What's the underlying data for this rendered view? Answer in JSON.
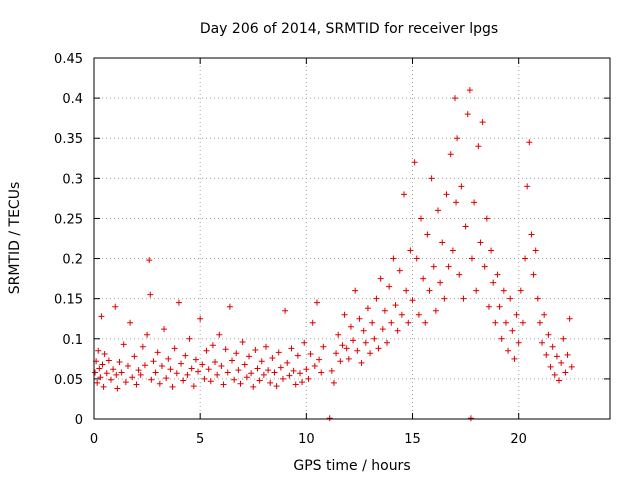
{
  "chart_data": {
    "type": "scatter",
    "title": "Day 206 of 2014, SRMTID for receiver lpgs",
    "xlabel": "GPS time / hours",
    "ylabel": "SRMTID / TECUs",
    "xlim": [
      0,
      24.3
    ],
    "ylim": [
      0,
      0.45
    ],
    "xticks": [
      0,
      5,
      10,
      15,
      20
    ],
    "xtick_labels": [
      "0",
      "5",
      "10",
      "15",
      "20"
    ],
    "yticks": [
      0,
      0.05,
      0.1,
      0.15,
      0.2,
      0.25,
      0.3,
      0.35,
      0.4,
      0.45
    ],
    "ytick_labels": [
      "0",
      "0.05",
      "0.1",
      "0.15",
      "0.2",
      "0.25",
      "0.3",
      "0.35",
      "0.4",
      "0.45"
    ],
    "grid": true,
    "marker": "+",
    "color": "#e00000",
    "series": [
      {
        "name": "SRMTID",
        "points": [
          [
            0.05,
            0.058
          ],
          [
            0.1,
            0.072
          ],
          [
            0.15,
            0.045
          ],
          [
            0.2,
            0.085
          ],
          [
            0.25,
            0.063
          ],
          [
            0.3,
            0.052
          ],
          [
            0.35,
            0.128
          ],
          [
            0.4,
            0.068
          ],
          [
            0.45,
            0.04
          ],
          [
            0.5,
            0.081
          ],
          [
            0.6,
            0.057
          ],
          [
            0.7,
            0.073
          ],
          [
            0.8,
            0.049
          ],
          [
            0.9,
            0.062
          ],
          [
            1.0,
            0.14
          ],
          [
            1.05,
            0.055
          ],
          [
            1.1,
            0.038
          ],
          [
            1.2,
            0.071
          ],
          [
            1.3,
            0.058
          ],
          [
            1.4,
            0.093
          ],
          [
            1.5,
            0.046
          ],
          [
            1.6,
            0.066
          ],
          [
            1.7,
            0.12
          ],
          [
            1.8,
            0.052
          ],
          [
            1.9,
            0.078
          ],
          [
            2.0,
            0.043
          ],
          [
            2.1,
            0.061
          ],
          [
            2.2,
            0.055
          ],
          [
            2.3,
            0.09
          ],
          [
            2.4,
            0.067
          ],
          [
            2.5,
            0.105
          ],
          [
            2.6,
            0.198
          ],
          [
            2.65,
            0.155
          ],
          [
            2.7,
            0.049
          ],
          [
            2.8,
            0.072
          ],
          [
            2.9,
            0.058
          ],
          [
            3.0,
            0.083
          ],
          [
            3.1,
            0.044
          ],
          [
            3.2,
            0.066
          ],
          [
            3.3,
            0.112
          ],
          [
            3.4,
            0.051
          ],
          [
            3.5,
            0.075
          ],
          [
            3.6,
            0.062
          ],
          [
            3.7,
            0.04
          ],
          [
            3.8,
            0.088
          ],
          [
            3.9,
            0.057
          ],
          [
            4.0,
            0.145
          ],
          [
            4.1,
            0.069
          ],
          [
            4.2,
            0.048
          ],
          [
            4.3,
            0.079
          ],
          [
            4.4,
            0.055
          ],
          [
            4.5,
            0.1
          ],
          [
            4.6,
            0.063
          ],
          [
            4.7,
            0.041
          ],
          [
            4.8,
            0.074
          ],
          [
            4.9,
            0.059
          ],
          [
            5.0,
            0.125
          ],
          [
            5.1,
            0.068
          ],
          [
            5.2,
            0.05
          ],
          [
            5.3,
            0.085
          ],
          [
            5.4,
            0.062
          ],
          [
            5.5,
            0.047
          ],
          [
            5.6,
            0.092
          ],
          [
            5.7,
            0.071
          ],
          [
            5.8,
            0.055
          ],
          [
            5.9,
            0.105
          ],
          [
            6.0,
            0.066
          ],
          [
            6.1,
            0.043
          ],
          [
            6.2,
            0.087
          ],
          [
            6.3,
            0.058
          ],
          [
            6.4,
            0.14
          ],
          [
            6.5,
            0.073
          ],
          [
            6.6,
            0.049
          ],
          [
            6.7,
            0.082
          ],
          [
            6.8,
            0.061
          ],
          [
            6.9,
            0.044
          ],
          [
            7.0,
            0.096
          ],
          [
            7.1,
            0.068
          ],
          [
            7.2,
            0.052
          ],
          [
            7.3,
            0.078
          ],
          [
            7.4,
            0.057
          ],
          [
            7.5,
            0.04
          ],
          [
            7.6,
            0.086
          ],
          [
            7.7,
            0.063
          ],
          [
            7.8,
            0.048
          ],
          [
            7.9,
            0.072
          ],
          [
            8.0,
            0.055
          ],
          [
            8.1,
            0.09
          ],
          [
            8.2,
            0.061
          ],
          [
            8.3,
            0.045
          ],
          [
            8.4,
            0.076
          ],
          [
            8.5,
            0.058
          ],
          [
            8.6,
            0.041
          ],
          [
            8.7,
            0.083
          ],
          [
            8.8,
            0.064
          ],
          [
            8.9,
            0.05
          ],
          [
            9.0,
            0.135
          ],
          [
            9.1,
            0.07
          ],
          [
            9.2,
            0.054
          ],
          [
            9.3,
            0.088
          ],
          [
            9.4,
            0.06
          ],
          [
            9.5,
            0.043
          ],
          [
            9.6,
            0.079
          ],
          [
            9.7,
            0.057
          ],
          [
            9.8,
            0.046
          ],
          [
            9.9,
            0.095
          ],
          [
            10.0,
            0.062
          ],
          [
            10.1,
            0.05
          ],
          [
            10.2,
            0.081
          ],
          [
            10.3,
            0.12
          ],
          [
            10.4,
            0.066
          ],
          [
            10.5,
            0.145
          ],
          [
            10.6,
            0.074
          ],
          [
            10.7,
            0.058
          ],
          [
            10.8,
            0.09
          ],
          [
            11.1,
            0.001
          ],
          [
            11.2,
            0.06
          ],
          [
            11.3,
            0.045
          ],
          [
            11.4,
            0.082
          ],
          [
            11.5,
            0.105
          ],
          [
            11.6,
            0.072
          ],
          [
            11.7,
            0.092
          ],
          [
            11.8,
            0.13
          ],
          [
            11.9,
            0.088
          ],
          [
            12.0,
            0.075
          ],
          [
            12.1,
            0.115
          ],
          [
            12.2,
            0.098
          ],
          [
            12.3,
            0.16
          ],
          [
            12.4,
            0.085
          ],
          [
            12.5,
            0.125
          ],
          [
            12.6,
            0.07
          ],
          [
            12.7,
            0.11
          ],
          [
            12.8,
            0.095
          ],
          [
            12.9,
            0.138
          ],
          [
            13.0,
            0.082
          ],
          [
            13.1,
            0.12
          ],
          [
            13.2,
            0.1
          ],
          [
            13.3,
            0.15
          ],
          [
            13.4,
            0.088
          ],
          [
            13.5,
            0.175
          ],
          [
            13.6,
            0.112
          ],
          [
            13.7,
            0.135
          ],
          [
            13.8,
            0.095
          ],
          [
            13.9,
            0.165
          ],
          [
            14.0,
            0.12
          ],
          [
            14.1,
            0.2
          ],
          [
            14.2,
            0.142
          ],
          [
            14.3,
            0.11
          ],
          [
            14.4,
            0.185
          ],
          [
            14.5,
            0.13
          ],
          [
            14.6,
            0.28
          ],
          [
            14.7,
            0.16
          ],
          [
            14.8,
            0.12
          ],
          [
            14.9,
            0.21
          ],
          [
            15.0,
            0.148
          ],
          [
            15.1,
            0.32
          ],
          [
            15.2,
            0.2
          ],
          [
            15.3,
            0.13
          ],
          [
            15.4,
            0.25
          ],
          [
            15.5,
            0.175
          ],
          [
            15.6,
            0.12
          ],
          [
            15.7,
            0.23
          ],
          [
            15.8,
            0.16
          ],
          [
            15.9,
            0.3
          ],
          [
            16.0,
            0.19
          ],
          [
            16.1,
            0.135
          ],
          [
            16.2,
            0.26
          ],
          [
            16.3,
            0.17
          ],
          [
            16.4,
            0.22
          ],
          [
            16.5,
            0.15
          ],
          [
            16.6,
            0.28
          ],
          [
            16.7,
            0.19
          ],
          [
            16.8,
            0.33
          ],
          [
            16.9,
            0.21
          ],
          [
            17.0,
            0.4
          ],
          [
            17.05,
            0.27
          ],
          [
            17.1,
            0.35
          ],
          [
            17.2,
            0.18
          ],
          [
            17.3,
            0.29
          ],
          [
            17.4,
            0.15
          ],
          [
            17.5,
            0.24
          ],
          [
            17.6,
            0.38
          ],
          [
            17.7,
            0.41
          ],
          [
            17.75,
            0.001
          ],
          [
            17.8,
            0.2
          ],
          [
            17.9,
            0.27
          ],
          [
            18.0,
            0.16
          ],
          [
            18.1,
            0.34
          ],
          [
            18.2,
            0.22
          ],
          [
            18.3,
            0.37
          ],
          [
            18.4,
            0.19
          ],
          [
            18.5,
            0.25
          ],
          [
            18.6,
            0.14
          ],
          [
            18.7,
            0.21
          ],
          [
            18.8,
            0.17
          ],
          [
            18.9,
            0.12
          ],
          [
            19.0,
            0.18
          ],
          [
            19.1,
            0.14
          ],
          [
            19.2,
            0.1
          ],
          [
            19.3,
            0.16
          ],
          [
            19.4,
            0.12
          ],
          [
            19.5,
            0.085
          ],
          [
            19.6,
            0.15
          ],
          [
            19.7,
            0.11
          ],
          [
            19.8,
            0.075
          ],
          [
            19.9,
            0.13
          ],
          [
            20.0,
            0.095
          ],
          [
            20.1,
            0.16
          ],
          [
            20.2,
            0.12
          ],
          [
            20.3,
            0.2
          ],
          [
            20.4,
            0.29
          ],
          [
            20.5,
            0.345
          ],
          [
            20.6,
            0.23
          ],
          [
            20.7,
            0.18
          ],
          [
            20.8,
            0.21
          ],
          [
            20.9,
            0.15
          ],
          [
            21.0,
            0.12
          ],
          [
            21.1,
            0.095
          ],
          [
            21.2,
            0.13
          ],
          [
            21.3,
            0.08
          ],
          [
            21.4,
            0.105
          ],
          [
            21.5,
            0.065
          ],
          [
            21.6,
            0.09
          ],
          [
            21.7,
            0.055
          ],
          [
            21.8,
            0.078
          ],
          [
            21.9,
            0.048
          ],
          [
            22.0,
            0.07
          ],
          [
            22.1,
            0.1
          ],
          [
            22.2,
            0.058
          ],
          [
            22.3,
            0.08
          ],
          [
            22.4,
            0.125
          ],
          [
            22.5,
            0.065
          ]
        ]
      }
    ]
  }
}
